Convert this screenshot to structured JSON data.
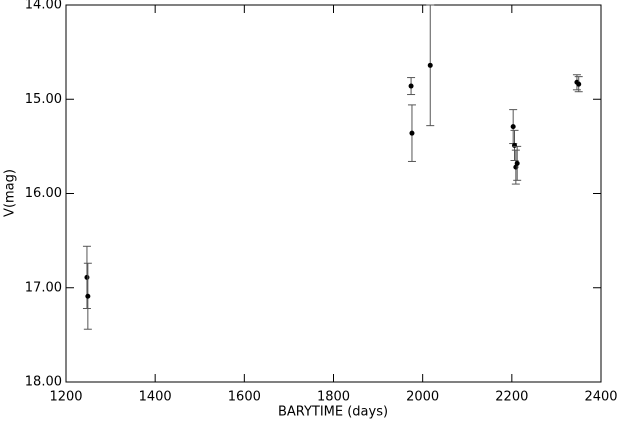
{
  "chart_data": {
    "type": "scatter",
    "x_label": "BARYTIME (days)",
    "y_label": "V(mag)",
    "xlim": [
      1200,
      2400
    ],
    "xticks": [
      1200,
      1400,
      1600,
      1800,
      2000,
      2200,
      2400
    ],
    "ylim": [
      18,
      14
    ],
    "yticks": [
      {
        "value": 14,
        "label": "14.00"
      },
      {
        "value": 15,
        "label": "15.00"
      },
      {
        "value": 16,
        "label": "16.00"
      },
      {
        "value": 17,
        "label": "17.00"
      },
      {
        "value": 18,
        "label": "18.00"
      }
    ],
    "inverted_y": true,
    "color": "#000000",
    "error_color": "#555555",
    "series": [
      {
        "x": [
          1247,
          1249,
          1974,
          1976,
          2017,
          2203,
          2206,
          2209,
          2212,
          2346,
          2350
        ],
        "values": [
          16.89,
          17.09,
          14.86,
          15.36,
          14.64,
          15.29,
          15.49,
          15.72,
          15.68,
          14.82,
          14.84
        ],
        "errors": [
          0.33,
          0.35,
          0.09,
          0.3,
          0.64,
          0.18,
          0.16,
          0.18,
          0.18,
          0.08,
          0.08
        ]
      }
    ]
  }
}
